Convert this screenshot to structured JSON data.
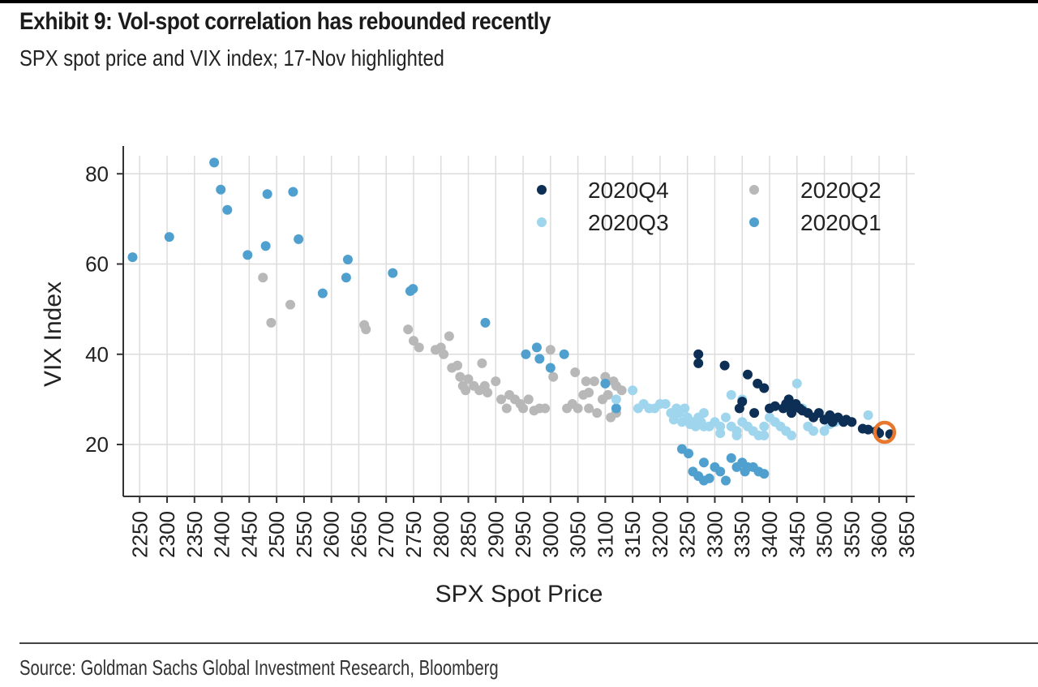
{
  "header": {
    "title": "Exhibit 9: Vol-spot correlation has rebounded recently",
    "subtitle": "SPX spot price and VIX index; 17-Nov highlighted"
  },
  "footer": {
    "source": "Source: Goldman Sachs Global Investment Research, Bloomberg"
  },
  "chart_data": {
    "type": "scatter",
    "xlabel": "SPX Spot Price",
    "ylabel": "VIX Index",
    "xlim": [
      2220,
      3665
    ],
    "ylim": [
      8.5,
      84
    ],
    "xticks": [
      2250,
      2300,
      2350,
      2400,
      2450,
      2500,
      2550,
      2600,
      2650,
      2700,
      2750,
      2800,
      2850,
      2900,
      2950,
      3000,
      3050,
      3100,
      3150,
      3200,
      3250,
      3300,
      3350,
      3400,
      3450,
      3500,
      3550,
      3600,
      3650
    ],
    "yticks": [
      20,
      40,
      60,
      80
    ],
    "grid": true,
    "legend_position": "top-right",
    "highlight": {
      "label": "17-Nov",
      "x": 3610,
      "y": 22.7,
      "color": "#e8772e"
    },
    "series": [
      {
        "name": "2020Q4",
        "color": "#0d2f55",
        "points": [
          [
            3270,
            40
          ],
          [
            3270,
            38
          ],
          [
            3318,
            37.5
          ],
          [
            3360,
            35.5
          ],
          [
            3378,
            33.5
          ],
          [
            3390,
            32.5
          ],
          [
            3345,
            28
          ],
          [
            3350,
            29.5
          ],
          [
            3400,
            28
          ],
          [
            3410,
            28.5
          ],
          [
            3425,
            28
          ],
          [
            3430,
            29
          ],
          [
            3435,
            30
          ],
          [
            3440,
            28.5
          ],
          [
            3448,
            29
          ],
          [
            3455,
            28
          ],
          [
            3460,
            27.5
          ],
          [
            3470,
            27
          ],
          [
            3480,
            26
          ],
          [
            3490,
            27
          ],
          [
            3500,
            25.5
          ],
          [
            3510,
            26.5
          ],
          [
            3515,
            25
          ],
          [
            3525,
            26
          ],
          [
            3535,
            25
          ],
          [
            3540,
            25.5
          ],
          [
            3550,
            25
          ],
          [
            3570,
            23.5
          ],
          [
            3595,
            23
          ],
          [
            3620,
            22.3
          ],
          [
            3440,
            27
          ],
          [
            3372,
            27
          ],
          [
            3580,
            23.3
          ],
          [
            3600,
            22.5
          ]
        ]
      },
      {
        "name": "2020Q3",
        "color": "#9fd6ee",
        "points": [
          [
            3150,
            32
          ],
          [
            3160,
            28
          ],
          [
            3170,
            29
          ],
          [
            3180,
            28
          ],
          [
            3190,
            28
          ],
          [
            3200,
            29
          ],
          [
            3210,
            29
          ],
          [
            3220,
            27
          ],
          [
            3225,
            25.5
          ],
          [
            3230,
            28
          ],
          [
            3235,
            27
          ],
          [
            3240,
            25
          ],
          [
            3245,
            28
          ],
          [
            3250,
            26
          ],
          [
            3255,
            24.5
          ],
          [
            3260,
            25
          ],
          [
            3265,
            24
          ],
          [
            3270,
            26
          ],
          [
            3275,
            25
          ],
          [
            3280,
            27
          ],
          [
            3290,
            24
          ],
          [
            3300,
            25
          ],
          [
            3310,
            24
          ],
          [
            3320,
            26
          ],
          [
            3330,
            24
          ],
          [
            3340,
            23
          ],
          [
            3350,
            25
          ],
          [
            3360,
            24
          ],
          [
            3370,
            23
          ],
          [
            3380,
            22
          ],
          [
            3390,
            22
          ],
          [
            3400,
            26
          ],
          [
            3410,
            25
          ],
          [
            3420,
            24
          ],
          [
            3430,
            23
          ],
          [
            3440,
            22
          ],
          [
            3450,
            33.5
          ],
          [
            3460,
            28
          ],
          [
            3470,
            24
          ],
          [
            3480,
            23
          ],
          [
            3500,
            23
          ],
          [
            3510,
            24.5
          ],
          [
            3520,
            25
          ],
          [
            3580,
            26.5
          ],
          [
            3330,
            31
          ],
          [
            3350,
            30
          ],
          [
            3390,
            24
          ],
          [
            3280,
            24
          ],
          [
            3310,
            22.5
          ],
          [
            3340,
            22
          ],
          [
            3120,
            30
          ]
        ]
      },
      {
        "name": "2020Q2",
        "color": "#b8b8b8",
        "points": [
          [
            2475,
            57
          ],
          [
            2490,
            47
          ],
          [
            2525,
            51
          ],
          [
            2660,
            46.5
          ],
          [
            2663,
            45.5
          ],
          [
            2740,
            45.5
          ],
          [
            2750,
            43
          ],
          [
            2760,
            41.5
          ],
          [
            2790,
            41
          ],
          [
            2800,
            41.5
          ],
          [
            2805,
            40
          ],
          [
            2815,
            44
          ],
          [
            2820,
            37
          ],
          [
            2830,
            37.5
          ],
          [
            2835,
            35
          ],
          [
            2840,
            33
          ],
          [
            2845,
            32
          ],
          [
            2850,
            34.5
          ],
          [
            2860,
            33
          ],
          [
            2870,
            32
          ],
          [
            2875,
            38
          ],
          [
            2880,
            33
          ],
          [
            2885,
            31.5
          ],
          [
            2900,
            34
          ],
          [
            2910,
            30
          ],
          [
            2920,
            28
          ],
          [
            2925,
            31
          ],
          [
            2935,
            30
          ],
          [
            2945,
            29
          ],
          [
            2950,
            28
          ],
          [
            2960,
            30
          ],
          [
            2970,
            27.5
          ],
          [
            2980,
            28
          ],
          [
            2990,
            28
          ],
          [
            3000,
            41
          ],
          [
            3005,
            35
          ],
          [
            3030,
            28
          ],
          [
            3040,
            29
          ],
          [
            3045,
            36
          ],
          [
            3050,
            28
          ],
          [
            3060,
            31
          ],
          [
            3065,
            34
          ],
          [
            3070,
            28
          ],
          [
            3080,
            34
          ],
          [
            3085,
            27
          ],
          [
            3095,
            30
          ],
          [
            3100,
            35
          ],
          [
            3105,
            31
          ],
          [
            3110,
            26
          ],
          [
            3115,
            34
          ],
          [
            3120,
            33
          ],
          [
            3130,
            32
          ],
          [
            3070,
            31.5
          ],
          [
            3120,
            27
          ]
        ]
      },
      {
        "name": "2020Q1",
        "color": "#4fa0ce",
        "points": [
          [
            2237,
            61.5
          ],
          [
            2304,
            66
          ],
          [
            2386,
            82.5
          ],
          [
            2398,
            76.5
          ],
          [
            2410,
            72
          ],
          [
            2447,
            62
          ],
          [
            2480,
            64
          ],
          [
            2483,
            75.5
          ],
          [
            2530,
            76
          ],
          [
            2540,
            65.5
          ],
          [
            2584,
            53.5
          ],
          [
            2627,
            57
          ],
          [
            2630,
            61
          ],
          [
            2712,
            58
          ],
          [
            2744,
            54
          ],
          [
            2749,
            54.5
          ],
          [
            2881,
            47
          ],
          [
            2955,
            40
          ],
          [
            2975,
            41.5
          ],
          [
            2980,
            39
          ],
          [
            3000,
            37
          ],
          [
            3025,
            40
          ],
          [
            3100,
            33.5
          ],
          [
            3120,
            28
          ],
          [
            3240,
            19
          ],
          [
            3252,
            18
          ],
          [
            3260,
            14
          ],
          [
            3270,
            13
          ],
          [
            3280,
            12
          ],
          [
            3290,
            12.5
          ],
          [
            3280,
            16
          ],
          [
            3300,
            15
          ],
          [
            3310,
            14
          ],
          [
            3320,
            12
          ],
          [
            3330,
            17
          ],
          [
            3340,
            15
          ],
          [
            3350,
            16
          ],
          [
            3355,
            14
          ],
          [
            3360,
            15
          ],
          [
            3370,
            15
          ],
          [
            3380,
            14
          ],
          [
            3390,
            13.5
          ]
        ]
      }
    ]
  }
}
